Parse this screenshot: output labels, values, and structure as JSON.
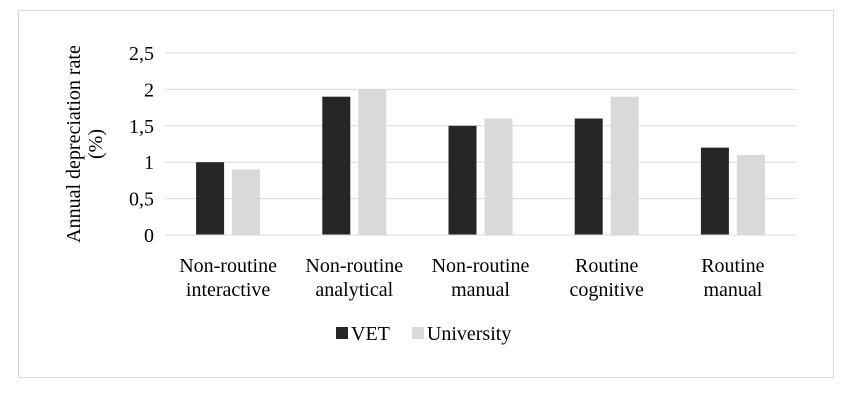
{
  "chart_data": {
    "type": "bar",
    "title": "",
    "xlabel": "",
    "ylabel": "Annual depreciation rate (%)",
    "ylabel_lines": [
      "Annual depreciation rate",
      "(%)"
    ],
    "ylim": [
      0,
      2.5
    ],
    "yticks": [
      0,
      0.5,
      1,
      1.5,
      2,
      2.5
    ],
    "ytick_labels": [
      "0",
      "0,5",
      "1",
      "1,5",
      "2",
      "2,5"
    ],
    "grid": true,
    "legend_position": "bottom",
    "categories": [
      [
        "Non-routine",
        "interactive"
      ],
      [
        "Non-routine",
        "analytical"
      ],
      [
        "Non-routine",
        "manual"
      ],
      [
        "Routine",
        "cognitive"
      ],
      [
        "Routine",
        "manual"
      ]
    ],
    "series": [
      {
        "name": "VET",
        "color": "#262626",
        "values": [
          1.0,
          1.9,
          1.5,
          1.6,
          1.2
        ]
      },
      {
        "name": "University",
        "color": "#d9d9d9",
        "values": [
          0.9,
          2.0,
          1.6,
          1.9,
          1.1
        ]
      }
    ]
  }
}
